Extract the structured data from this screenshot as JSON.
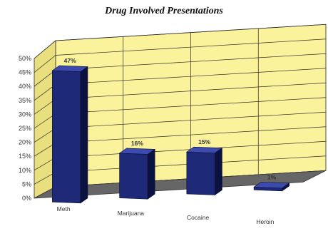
{
  "chart_data": {
    "type": "bar",
    "title": "Drug Involved Presentations",
    "categories": [
      "Meth",
      "Marijuana",
      "Cocaine",
      "Heroin"
    ],
    "values": [
      47,
      16,
      15,
      1
    ],
    "data_labels": [
      "47%",
      "16%",
      "15%",
      "1%"
    ],
    "ylim": [
      0,
      50
    ],
    "yticks": [
      "0%",
      "5%",
      "10%",
      "15%",
      "20%",
      "25%",
      "30%",
      "35%",
      "40%",
      "45%",
      "50%"
    ],
    "grid": true,
    "style": "3d",
    "colors": {
      "bar_front": "#1e2a78",
      "bar_side": "#0c1240",
      "bar_top": "#3d4bb0",
      "back_wall": "#fbf29c",
      "side_wall": "#e9df7e",
      "floor": "#666666",
      "grid": "#2a2a2a"
    }
  }
}
